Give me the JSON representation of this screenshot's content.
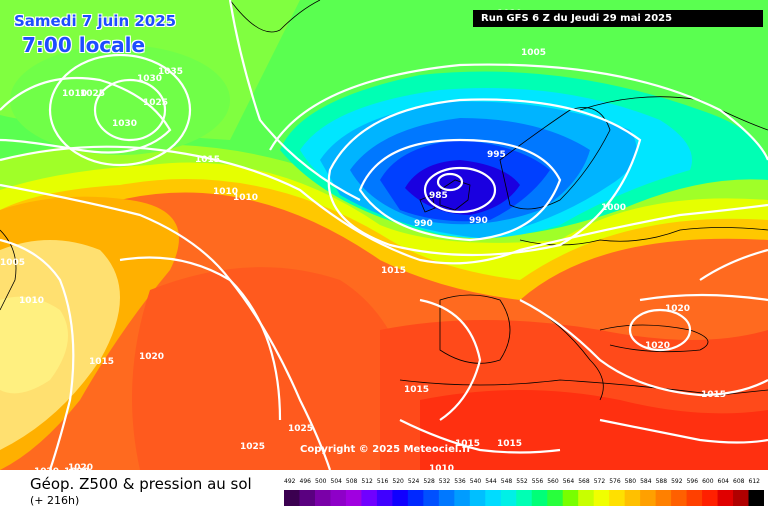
{
  "header": {
    "date": "Samedi 7 juin 2025",
    "time": "7:00 locale",
    "run": "Run GFS 6 Z du Jeudi 29 mai 2025"
  },
  "copyright": "Copyright © 2025 Meteociel.fr",
  "footer": {
    "title": "Géop. Z500 & pression au sol",
    "subtitle": "(+ 216h)"
  },
  "legend": {
    "labels": [
      "492",
      "496",
      "500",
      "504",
      "508",
      "512",
      "516",
      "520",
      "524",
      "528",
      "532",
      "536",
      "540",
      "544",
      "548",
      "552",
      "556",
      "560",
      "564",
      "568",
      "572",
      "576",
      "580",
      "584",
      "588",
      "592",
      "596",
      "600",
      "604",
      "608",
      "612"
    ],
    "colors": [
      "#3b0050",
      "#5a0080",
      "#7a00a8",
      "#8e00c8",
      "#a000e0",
      "#7000ff",
      "#4000ff",
      "#1000ff",
      "#0028ff",
      "#0050ff",
      "#0078ff",
      "#009cff",
      "#00bfff",
      "#00dcff",
      "#00f0e6",
      "#00ffb4",
      "#00ff78",
      "#28ff3c",
      "#78ff00",
      "#c8ff00",
      "#f0ff00",
      "#ffe000",
      "#ffc000",
      "#ffa000",
      "#ff8000",
      "#ff6000",
      "#ff4000",
      "#ff2000",
      "#e00000",
      "#b00000",
      "#000000"
    ]
  },
  "isobars": {
    "labels": [
      {
        "text": "1010"
      },
      {
        "text": "1005"
      },
      {
        "text": "1035"
      },
      {
        "text": "1030"
      },
      {
        "text": "1010"
      },
      {
        "text": "1025"
      },
      {
        "text": "1025"
      },
      {
        "text": "1030"
      },
      {
        "text": "1015"
      },
      {
        "text": "995"
      },
      {
        "text": "1010"
      },
      {
        "text": "1010"
      },
      {
        "text": "985"
      },
      {
        "text": "990"
      },
      {
        "text": "990"
      },
      {
        "text": "1000"
      },
      {
        "text": "1005"
      },
      {
        "text": "1015"
      },
      {
        "text": "1010"
      },
      {
        "text": "1020"
      },
      {
        "text": "1020"
      },
      {
        "text": "1015"
      },
      {
        "text": "1020"
      },
      {
        "text": "1015"
      },
      {
        "text": "1015"
      },
      {
        "text": "1025"
      },
      {
        "text": "1025"
      },
      {
        "text": "1015"
      },
      {
        "text": "1015"
      },
      {
        "text": "1010"
      },
      {
        "text": "1020"
      },
      {
        "text": "1020"
      },
      {
        "text": "1020"
      },
      {
        "text": "1015"
      }
    ]
  }
}
